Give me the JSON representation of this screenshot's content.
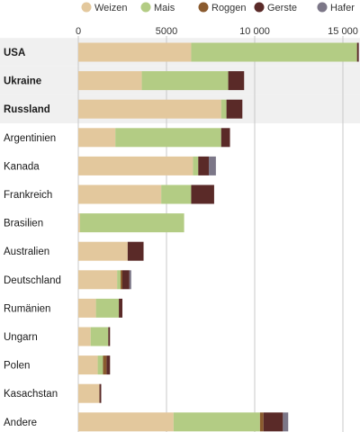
{
  "chart_data": {
    "type": "bar",
    "orientation": "horizontal",
    "stacked": true,
    "categories": [
      "USA",
      "Ukraine",
      "Russland",
      "Argentinien",
      "Kanada",
      "Frankreich",
      "Brasilien",
      "Australien",
      "Deutschland",
      "Rumänien",
      "Ungarn",
      "Polen",
      "Kasachstan",
      "Andere"
    ],
    "highlighted_categories": [
      "USA",
      "Ukraine",
      "Russland"
    ],
    "series": [
      {
        "name": "Weizen",
        "color": "#e3c89d",
        "values": [
          6400,
          3600,
          8100,
          2100,
          6500,
          4700,
          100,
          2800,
          2200,
          1000,
          700,
          1100,
          1200,
          5400
        ]
      },
      {
        "name": "Mais",
        "color": "#b3cc84",
        "values": [
          9400,
          4900,
          300,
          6000,
          300,
          1700,
          5900,
          0,
          200,
          1300,
          1000,
          300,
          0,
          4900
        ]
      },
      {
        "name": "Roggen",
        "color": "#8a5a2e",
        "values": [
          0,
          0,
          0,
          0,
          0,
          0,
          0,
          0,
          100,
          0,
          0,
          200,
          0,
          200
        ]
      },
      {
        "name": "Gerste",
        "color": "#5a2a28",
        "values": [
          100,
          900,
          900,
          500,
          600,
          1300,
          0,
          900,
          400,
          200,
          100,
          200,
          100,
          1100
        ]
      },
      {
        "name": "Hafer",
        "color": "#7c7788",
        "values": [
          0,
          0,
          0,
          0,
          400,
          0,
          0,
          0,
          100,
          0,
          0,
          0,
          0,
          300
        ]
      }
    ],
    "x_ticks": [
      0,
      5000,
      10000,
      15000
    ],
    "x_tick_labels": [
      "0",
      "5000",
      "10 000",
      "15 000"
    ],
    "xlim": [
      0,
      16200
    ],
    "grid": true,
    "legend_position": "top"
  }
}
